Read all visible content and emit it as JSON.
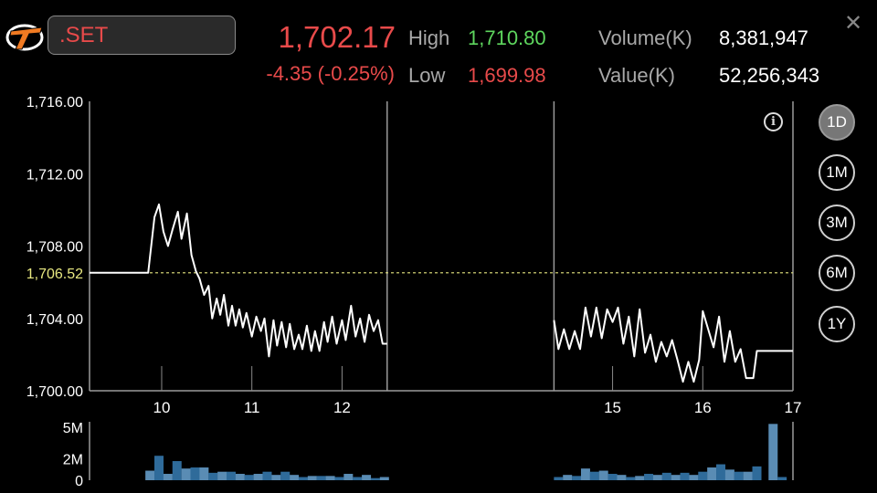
{
  "header": {
    "symbol": ".SET",
    "price": "1,702.17",
    "change": "-4.35 (-0.25%)",
    "high_label": "High",
    "high_value": "1,710.80",
    "low_label": "Low",
    "low_value": "1,699.98",
    "volume_label": "Volume(K)",
    "volume_value": "8,381,947",
    "value_label": "Value(K)",
    "value_value": "52,256,343",
    "close_icon": "close-icon",
    "info_icon": "info-icon"
  },
  "periods": [
    {
      "label": "1D",
      "active": true
    },
    {
      "label": "1M",
      "active": false
    },
    {
      "label": "3M",
      "active": false
    },
    {
      "label": "6M",
      "active": false
    },
    {
      "label": "1Y",
      "active": false
    }
  ],
  "colors": {
    "up": "#5ed65e",
    "down": "#e84a4a",
    "line": "#ffffff",
    "prev_close": "#e8e880",
    "volume_dark": "#2f6b9a",
    "volume_light": "#5a8cb4"
  },
  "chart_data": {
    "type": "line",
    "ylim": [
      1700,
      1716
    ],
    "yticks": [
      "1,700.00",
      "1,704.00",
      "1,708.00",
      "1,712.00",
      "1,716.00"
    ],
    "ytick_values": [
      1700,
      1704,
      1708,
      1712,
      1716
    ],
    "prev_close": 1706.52,
    "prev_close_label": "1,706.52",
    "xlim": [
      9.2,
      17
    ],
    "xticks": [
      {
        "label": "10",
        "x": 10
      },
      {
        "label": "11",
        "x": 11
      },
      {
        "label": "12",
        "x": 12
      },
      {
        "label": "15",
        "x": 15
      },
      {
        "label": "16",
        "x": 16
      },
      {
        "label": "17",
        "x": 17
      }
    ],
    "session_breaks": [
      12.5,
      14.35
    ],
    "sessions": [
      [
        [
          9.2,
          1706.52
        ],
        [
          9.8,
          1706.52
        ],
        [
          9.85,
          1706.52
        ],
        [
          9.92,
          1709.6
        ],
        [
          9.97,
          1710.3
        ],
        [
          10.02,
          1708.8
        ],
        [
          10.07,
          1708.0
        ],
        [
          10.12,
          1708.9
        ],
        [
          10.18,
          1709.9
        ],
        [
          10.22,
          1708.4
        ],
        [
          10.28,
          1709.8
        ],
        [
          10.33,
          1707.5
        ],
        [
          10.38,
          1706.6
        ],
        [
          10.42,
          1706.2
        ],
        [
          10.47,
          1705.3
        ],
        [
          10.52,
          1705.8
        ],
        [
          10.56,
          1704.0
        ],
        [
          10.61,
          1705.1
        ],
        [
          10.65,
          1704.2
        ],
        [
          10.69,
          1705.3
        ],
        [
          10.74,
          1703.6
        ],
        [
          10.78,
          1704.7
        ],
        [
          10.82,
          1703.6
        ],
        [
          10.86,
          1704.5
        ],
        [
          10.9,
          1703.5
        ],
        [
          10.94,
          1704.3
        ],
        [
          11.0,
          1703.0
        ],
        [
          11.05,
          1704.1
        ],
        [
          11.1,
          1703.3
        ],
        [
          11.14,
          1704.0
        ],
        [
          11.19,
          1701.9
        ],
        [
          11.24,
          1703.9
        ],
        [
          11.28,
          1702.5
        ],
        [
          11.33,
          1703.8
        ],
        [
          11.38,
          1702.4
        ],
        [
          11.42,
          1703.7
        ],
        [
          11.47,
          1702.3
        ],
        [
          11.52,
          1703.1
        ],
        [
          11.56,
          1702.3
        ],
        [
          11.61,
          1703.6
        ],
        [
          11.66,
          1702.2
        ],
        [
          11.7,
          1703.3
        ],
        [
          11.75,
          1702.2
        ],
        [
          11.8,
          1703.8
        ],
        [
          11.84,
          1702.7
        ],
        [
          11.89,
          1704.1
        ],
        [
          11.94,
          1702.6
        ],
        [
          12.0,
          1703.9
        ],
        [
          12.04,
          1702.8
        ],
        [
          12.1,
          1704.7
        ],
        [
          12.15,
          1703.0
        ],
        [
          12.2,
          1704.0
        ],
        [
          12.25,
          1702.7
        ],
        [
          12.3,
          1704.2
        ],
        [
          12.35,
          1703.3
        ],
        [
          12.4,
          1703.9
        ],
        [
          12.45,
          1702.6
        ],
        [
          12.5,
          1702.6
        ]
      ],
      [
        [
          14.35,
          1703.9
        ],
        [
          14.4,
          1702.3
        ],
        [
          14.46,
          1703.4
        ],
        [
          14.52,
          1702.3
        ],
        [
          14.58,
          1703.3
        ],
        [
          14.64,
          1702.3
        ],
        [
          14.7,
          1704.6
        ],
        [
          14.76,
          1703.0
        ],
        [
          14.82,
          1704.6
        ],
        [
          14.88,
          1702.9
        ],
        [
          14.94,
          1704.5
        ],
        [
          15.0,
          1703.8
        ],
        [
          15.06,
          1704.6
        ],
        [
          15.12,
          1702.6
        ],
        [
          15.18,
          1704.1
        ],
        [
          15.24,
          1701.9
        ],
        [
          15.3,
          1704.5
        ],
        [
          15.36,
          1702.1
        ],
        [
          15.42,
          1703.1
        ],
        [
          15.48,
          1701.6
        ],
        [
          15.54,
          1702.7
        ],
        [
          15.6,
          1701.9
        ],
        [
          15.66,
          1702.8
        ],
        [
          15.72,
          1701.7
        ],
        [
          15.78,
          1700.5
        ],
        [
          15.84,
          1701.6
        ],
        [
          15.9,
          1700.5
        ],
        [
          15.96,
          1701.7
        ],
        [
          16.0,
          1704.4
        ],
        [
          16.06,
          1703.4
        ],
        [
          16.12,
          1702.4
        ],
        [
          16.18,
          1704.1
        ],
        [
          16.24,
          1701.6
        ],
        [
          16.3,
          1703.3
        ],
        [
          16.36,
          1701.6
        ],
        [
          16.42,
          1702.3
        ],
        [
          16.48,
          1700.7
        ],
        [
          16.56,
          1700.7
        ],
        [
          16.6,
          1702.2
        ],
        [
          16.78,
          1702.2
        ],
        [
          17.0,
          1702.2
        ]
      ]
    ],
    "volume": {
      "yticks": [
        "5M",
        "2M",
        "0"
      ],
      "ytick_values": [
        5,
        2,
        0
      ],
      "ylim": [
        0,
        5.5
      ],
      "bars": [
        [
          9.87,
          0.9,
          "light"
        ],
        [
          9.97,
          2.3,
          "dark"
        ],
        [
          10.07,
          0.6,
          "light"
        ],
        [
          10.17,
          1.8,
          "dark"
        ],
        [
          10.27,
          1.1,
          "light"
        ],
        [
          10.37,
          1.2,
          "dark"
        ],
        [
          10.47,
          1.2,
          "light"
        ],
        [
          10.57,
          0.7,
          "dark"
        ],
        [
          10.67,
          0.8,
          "light"
        ],
        [
          10.77,
          0.8,
          "dark"
        ],
        [
          10.87,
          0.6,
          "light"
        ],
        [
          10.97,
          0.5,
          "dark"
        ],
        [
          11.07,
          0.6,
          "light"
        ],
        [
          11.17,
          0.8,
          "dark"
        ],
        [
          11.27,
          0.5,
          "light"
        ],
        [
          11.37,
          0.8,
          "dark"
        ],
        [
          11.47,
          0.5,
          "light"
        ],
        [
          11.57,
          0.3,
          "dark"
        ],
        [
          11.67,
          0.4,
          "light"
        ],
        [
          11.77,
          0.4,
          "dark"
        ],
        [
          11.87,
          0.4,
          "light"
        ],
        [
          11.97,
          0.3,
          "dark"
        ],
        [
          12.07,
          0.6,
          "light"
        ],
        [
          12.17,
          0.3,
          "dark"
        ],
        [
          12.27,
          0.5,
          "light"
        ],
        [
          12.37,
          0.2,
          "dark"
        ],
        [
          12.47,
          0.3,
          "light"
        ],
        [
          14.4,
          0.3,
          "dark"
        ],
        [
          14.5,
          0.5,
          "light"
        ],
        [
          14.6,
          0.4,
          "dark"
        ],
        [
          14.7,
          1.1,
          "light"
        ],
        [
          14.8,
          0.8,
          "dark"
        ],
        [
          14.9,
          0.9,
          "light"
        ],
        [
          15.0,
          0.6,
          "dark"
        ],
        [
          15.1,
          0.5,
          "light"
        ],
        [
          15.2,
          0.3,
          "dark"
        ],
        [
          15.3,
          0.4,
          "light"
        ],
        [
          15.4,
          0.6,
          "dark"
        ],
        [
          15.5,
          0.5,
          "light"
        ],
        [
          15.6,
          0.7,
          "dark"
        ],
        [
          15.7,
          0.5,
          "light"
        ],
        [
          15.8,
          0.7,
          "dark"
        ],
        [
          15.9,
          0.5,
          "light"
        ],
        [
          16.0,
          0.8,
          "dark"
        ],
        [
          16.1,
          1.2,
          "light"
        ],
        [
          16.2,
          1.5,
          "dark"
        ],
        [
          16.3,
          1.0,
          "light"
        ],
        [
          16.4,
          0.8,
          "dark"
        ],
        [
          16.5,
          0.8,
          "light"
        ],
        [
          16.6,
          1.3,
          "dark"
        ],
        [
          16.78,
          5.3,
          "light"
        ],
        [
          16.88,
          0.3,
          "dark"
        ]
      ]
    }
  }
}
